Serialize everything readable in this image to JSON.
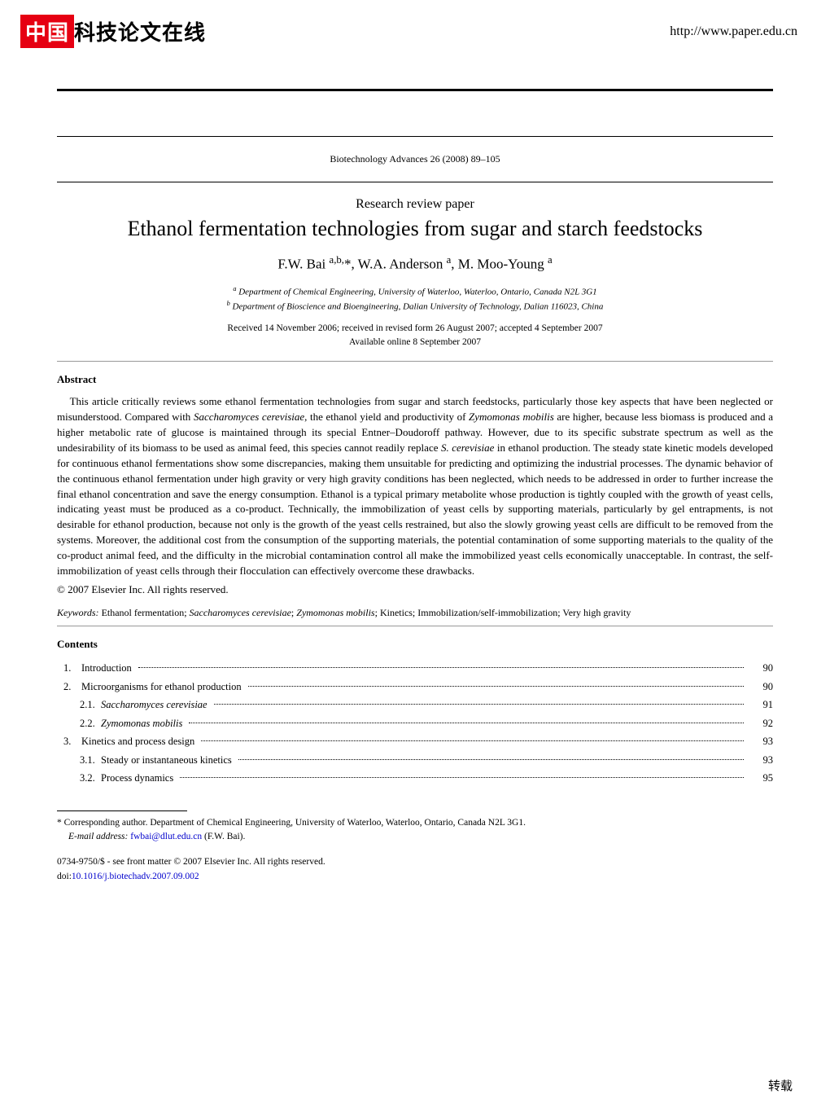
{
  "header": {
    "logo_red": "中国",
    "logo_black": "科技论文在线",
    "url": "http://www.paper.edu.cn"
  },
  "journal": {
    "citation": "Biotechnology Advances 26 (2008) 89–105"
  },
  "paper_type": "Research review paper",
  "title": "Ethanol fermentation technologies from sugar and starch feedstocks",
  "authors_html": "F.W. Bai <sup>a,b,</sup>*, W.A. Anderson <sup>a</sup>, M. Moo-Young <sup>a</sup>",
  "affiliations": {
    "a": "Department of Chemical Engineering, University of Waterloo, Waterloo, Ontario, Canada N2L 3G1",
    "b": "Department of Bioscience and Bioengineering, Dalian University of Technology, Dalian 116023, China"
  },
  "dates": {
    "received": "Received 14 November 2006; received in revised form 26 August 2007; accepted 4 September 2007",
    "online": "Available online 8 September 2007"
  },
  "abstract": {
    "heading": "Abstract",
    "para1": "This article critically reviews some ethanol fermentation technologies from sugar and starch feedstocks, particularly those key aspects that have been neglected or misunderstood. Compared with Saccharomyces cerevisiae, the ethanol yield and productivity of Zymomonas mobilis are higher, because less biomass is produced and a higher metabolic rate of glucose is maintained through its special Entner–Doudoroff pathway. However, due to its specific substrate spectrum as well as the undesirability of its biomass to be used as animal feed, this species cannot readily replace S. cerevisiae in ethanol production. The steady state kinetic models developed for continuous ethanol fermentations show some discrepancies, making them unsuitable for predicting and optimizing the industrial processes. The dynamic behavior of the continuous ethanol fermentation under high gravity or very high gravity conditions has been neglected, which needs to be addressed in order to further increase the final ethanol concentration and save the energy consumption. Ethanol is a typical primary metabolite whose production is tightly coupled with the growth of yeast cells, indicating yeast must be produced as a co-product. Technically, the immobilization of yeast cells by supporting materials, particularly by gel entrapments, is not desirable for ethanol production, because not only is the growth of the yeast cells restrained, but also the slowly growing yeast cells are difficult to be removed from the systems. Moreover, the additional cost from the consumption of the supporting materials, the potential contamination of some supporting materials to the quality of the co-product animal feed, and the difficulty in the microbial contamination control all make the immobilized yeast cells economically unacceptable. In contrast, the self-immobilization of yeast cells through their flocculation can effectively overcome these drawbacks.",
    "copyright": "© 2007 Elsevier Inc. All rights reserved."
  },
  "keywords": {
    "label": "Keywords:",
    "text": " Ethanol fermentation; Saccharomyces cerevisiae; Zymomonas mobilis; Kinetics; Immobilization/self-immobilization; Very high gravity"
  },
  "contents": {
    "heading": "Contents",
    "items": [
      {
        "num": "1.",
        "sub": "",
        "label": "Introduction",
        "italic": false,
        "page": "90"
      },
      {
        "num": "2.",
        "sub": "",
        "label": "Microorganisms for ethanol production",
        "italic": false,
        "page": "90"
      },
      {
        "num": "",
        "sub": "2.1.",
        "label": "Saccharomyces cerevisiae",
        "italic": true,
        "page": "91"
      },
      {
        "num": "",
        "sub": "2.2.",
        "label": "Zymomonas mobilis",
        "italic": true,
        "page": "92"
      },
      {
        "num": "3.",
        "sub": "",
        "label": "Kinetics and process design",
        "italic": false,
        "page": "93"
      },
      {
        "num": "",
        "sub": "3.1.",
        "label": "Steady or instantaneous kinetics",
        "italic": false,
        "page": "93"
      },
      {
        "num": "",
        "sub": "3.2.",
        "label": "Process dynamics",
        "italic": false,
        "page": "95"
      }
    ]
  },
  "footnotes": {
    "corr": "* Corresponding author. Department of Chemical Engineering, University of Waterloo, Waterloo, Ontario, Canada N2L 3G1.",
    "email_label": "E-mail address:",
    "email": "fwbai@dlut.edu.cn",
    "email_who": "(F.W. Bai)."
  },
  "bottom": {
    "issn": "0734-9750/$ - see front matter © 2007 Elsevier Inc. All rights reserved.",
    "doi_label": "doi:",
    "doi": "10.1016/j.biotechadv.2007.09.002"
  },
  "footer_mark": "转载",
  "colors": {
    "logo_red": "#e60012",
    "link": "#0000cc",
    "text": "#000000",
    "bg": "#ffffff",
    "hr_light": "#999"
  }
}
